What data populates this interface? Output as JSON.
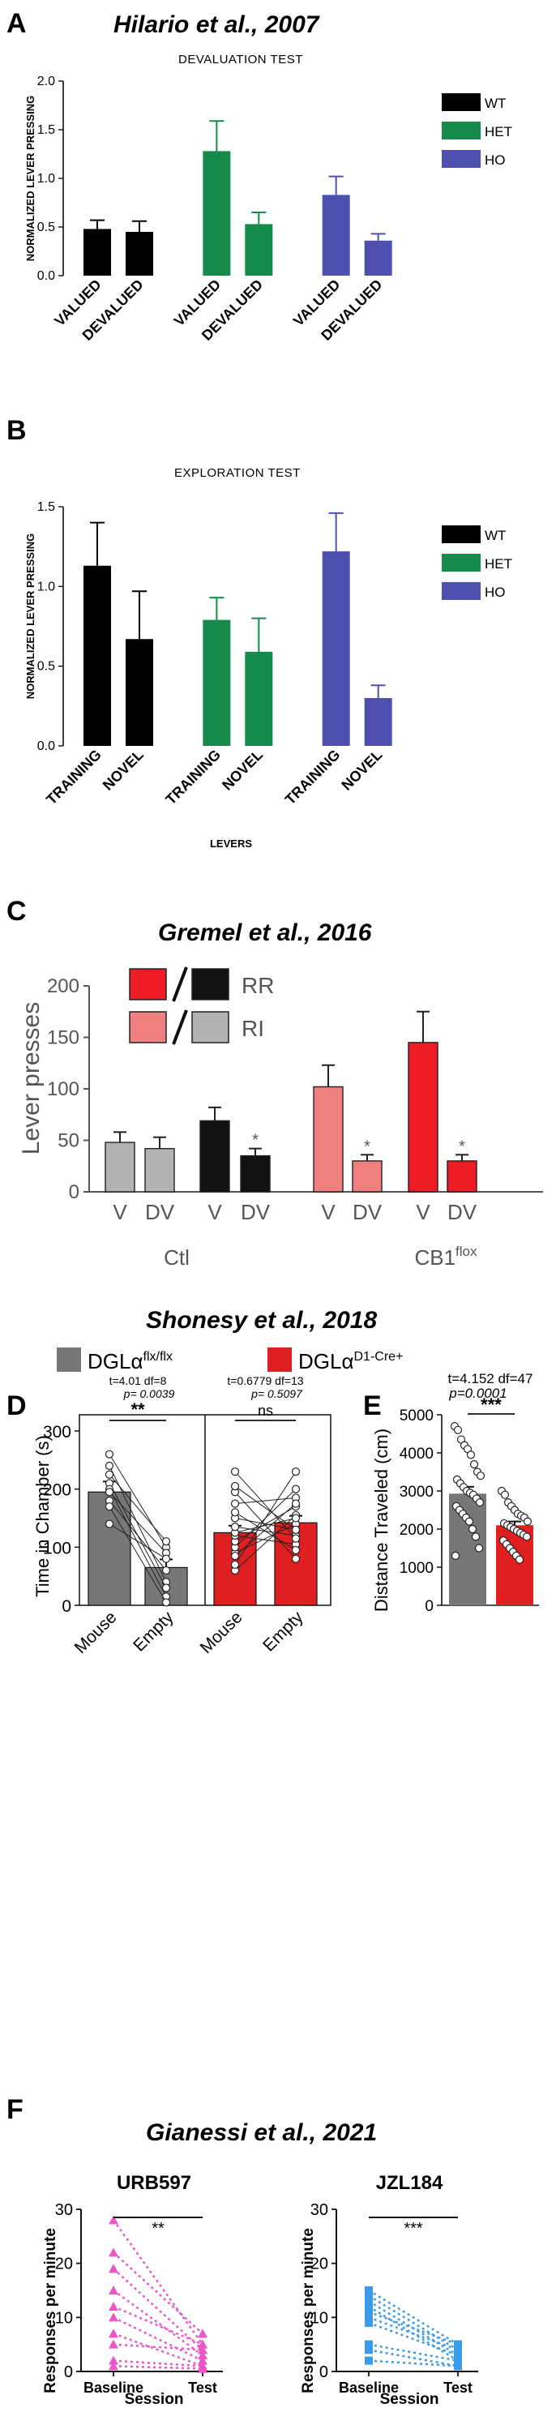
{
  "panels": [
    {
      "letter": "A",
      "citation": "Hilario et al., 2007",
      "chart_data": {
        "type": "bar",
        "title": "DEVALUATION TEST",
        "ylabel": "NORMALIZED LEVER PRESSING",
        "ylim": [
          0,
          2.0
        ],
        "yticks": [
          "0.0",
          "0.5",
          "1.0",
          "1.5",
          "2.0"
        ],
        "categories": [
          "VALUED",
          "DEVALUED"
        ],
        "legend": [
          "WT",
          "HET",
          "HO"
        ],
        "colors": [
          "#000000",
          "#168a4a",
          "#4e4fae"
        ],
        "series": [
          {
            "name": "WT",
            "values": [
              0.48,
              0.45
            ],
            "errors": [
              0.09,
              0.11
            ]
          },
          {
            "name": "HET",
            "values": [
              1.28,
              0.53
            ],
            "errors": [
              0.31,
              0.12
            ]
          },
          {
            "name": "HO",
            "values": [
              0.83,
              0.36
            ],
            "errors": [
              0.19,
              0.07
            ]
          }
        ]
      }
    },
    {
      "letter": "B",
      "chart_data": {
        "type": "bar",
        "title": "EXPLORATION TEST",
        "ylabel": "NORMALIZED LEVER PRESSING",
        "xlabel": "LEVERS",
        "ylim": [
          0,
          1.5
        ],
        "yticks": [
          "0.0",
          "0.5",
          "1.0",
          "1.5"
        ],
        "categories": [
          "TRAINING",
          "NOVEL"
        ],
        "legend": [
          "WT",
          "HET",
          "HO"
        ],
        "colors": [
          "#000000",
          "#168a4a",
          "#4e4fae"
        ],
        "series": [
          {
            "name": "WT",
            "values": [
              1.13,
              0.67
            ],
            "errors": [
              0.27,
              0.3
            ]
          },
          {
            "name": "HET",
            "values": [
              0.79,
              0.59
            ],
            "errors": [
              0.14,
              0.21
            ]
          },
          {
            "name": "HO",
            "values": [
              1.22,
              0.3
            ],
            "errors": [
              0.24,
              0.08
            ]
          }
        ]
      }
    },
    {
      "letter": "C",
      "citation": "Gremel et al., 2016",
      "chart_data": {
        "type": "bar",
        "ylabel": "Lever presses",
        "ylim": [
          0,
          200
        ],
        "yticks": [
          "0",
          "50",
          "100",
          "150",
          "200"
        ],
        "legend": [
          "RR",
          "RI"
        ],
        "groups": [
          "Ctl",
          "CB1",
          "flox"
        ],
        "bar_labels": [
          "V",
          "DV",
          "V",
          "DV",
          "V",
          "DV",
          "V",
          "DV"
        ],
        "values": [
          48,
          42,
          69,
          35,
          102,
          30,
          145,
          30
        ],
        "errors": [
          10,
          11,
          13,
          7,
          21,
          6,
          30,
          6
        ],
        "colors": [
          "#b3b3b3",
          "#b3b3b3",
          "#111111",
          "#111111",
          "#f08080",
          "#f08080",
          "#ee1c24",
          "#ee1c24"
        ],
        "significance": [
          "",
          "",
          "",
          "*",
          "",
          "*",
          "",
          "*"
        ]
      }
    },
    {
      "letter": "D",
      "citation": "Shonesy et al., 2018",
      "legend": [
        {
          "label": "DGLα",
          "sup": "flx/flx",
          "color": "#777777"
        },
        {
          "label": "DGLα",
          "sup": "D1-Cre+",
          "color": "#e02020"
        }
      ],
      "chart_data": {
        "type": "bar",
        "ylabel": "Time in Chamber (s)",
        "ylim": [
          0,
          300
        ],
        "yticks": [
          "0",
          "100",
          "200",
          "300"
        ],
        "categories": [
          "Mouse",
          "Empty"
        ],
        "groups": [
          {
            "values": [
              195,
              65
            ],
            "errors": [
              18,
              14
            ],
            "stat1": "t=4.01 df=8",
            "stat2": "p= 0.0039",
            "sig": "**",
            "color": "#777777"
          },
          {
            "values": [
              125,
              142
            ],
            "errors": [
              12,
              12
            ],
            "stat1": "t=0.6779 df=13",
            "stat2": "p= 0.5097",
            "sig": "ns",
            "color": "#e02020"
          }
        ],
        "pairs1": [
          [
            260,
            100
          ],
          [
            240,
            40
          ],
          [
            225,
            110
          ],
          [
            210,
            30
          ],
          [
            200,
            15
          ],
          [
            195,
            90
          ],
          [
            180,
            60
          ],
          [
            170,
            5
          ],
          [
            140,
            80
          ]
        ],
        "pairs2": [
          [
            60,
            155
          ],
          [
            70,
            230
          ],
          [
            90,
            140
          ],
          [
            100,
            200
          ],
          [
            110,
            170
          ],
          [
            120,
            105
          ],
          [
            125,
            150
          ],
          [
            135,
            120
          ],
          [
            150,
            130
          ],
          [
            160,
            95
          ],
          [
            175,
            185
          ],
          [
            195,
            80
          ],
          [
            205,
            130
          ],
          [
            230,
            115
          ],
          [
            85,
            175
          ]
        ]
      }
    },
    {
      "letter": "E",
      "chart_data": {
        "type": "bar",
        "ylabel": "Distance Traveled (cm)",
        "ylim": [
          0,
          5000
        ],
        "yticks": [
          "0",
          "1000",
          "2000",
          "3000",
          "4000",
          "5000"
        ],
        "values": [
          2930,
          2100
        ],
        "errors": [
          180,
          100
        ],
        "stat1": "t=4.152 df=47",
        "stat2": "p=0.0001",
        "sig": "***",
        "colors": [
          "#777777",
          "#e02020"
        ],
        "points1": [
          4700,
          4600,
          4350,
          4200,
          4100,
          3950,
          3700,
          3500,
          3400,
          3300,
          3200,
          3100,
          3000,
          2950,
          2900,
          2800,
          2700,
          2600,
          2500,
          2400,
          2300,
          2200,
          2000,
          1800,
          1500,
          1300
        ],
        "points2": [
          3000,
          2900,
          2700,
          2600,
          2500,
          2400,
          2350,
          2300,
          2200,
          2150,
          2100,
          2050,
          2000,
          1950,
          1900,
          1850,
          1800,
          1700,
          1600,
          1500,
          1400,
          1300,
          1200
        ]
      }
    },
    {
      "letter": "F",
      "citation": "Gianessi et al., 2021",
      "charts": [
        {
          "type": "line",
          "title": "URB597",
          "ylabel": "Responses per minute",
          "xlabel": "Session",
          "ylim": [
            0,
            30
          ],
          "yticks": [
            "0",
            "10",
            "20",
            "30"
          ],
          "categories": [
            "Baseline",
            "Test"
          ],
          "sig": "**",
          "color": "#ee55c8",
          "pairs": [
            [
              28,
              5
            ],
            [
              22,
              7
            ],
            [
              19,
              4
            ],
            [
              15,
              3
            ],
            [
              12,
              5
            ],
            [
              10,
              2
            ],
            [
              7,
              1
            ],
            [
              5,
              4
            ],
            [
              2,
              1
            ],
            [
              1,
              0.5
            ]
          ]
        },
        {
          "type": "line",
          "title": "JZL184",
          "ylabel": "Responses per minute",
          "xlabel": "Session",
          "ylim": [
            0,
            30
          ],
          "yticks": [
            "0",
            "10",
            "20",
            "30"
          ],
          "categories": [
            "Baseline",
            "Test"
          ],
          "sig": "***",
          "color": "#3c9be8",
          "pairs": [
            [
              15,
              5
            ],
            [
              14,
              4
            ],
            [
              13,
              3
            ],
            [
              12,
              2
            ],
            [
              11,
              5
            ],
            [
              10,
              4
            ],
            [
              9,
              3
            ],
            [
              5,
              2
            ],
            [
              4,
              1
            ],
            [
              2,
              1
            ]
          ]
        }
      ]
    }
  ]
}
